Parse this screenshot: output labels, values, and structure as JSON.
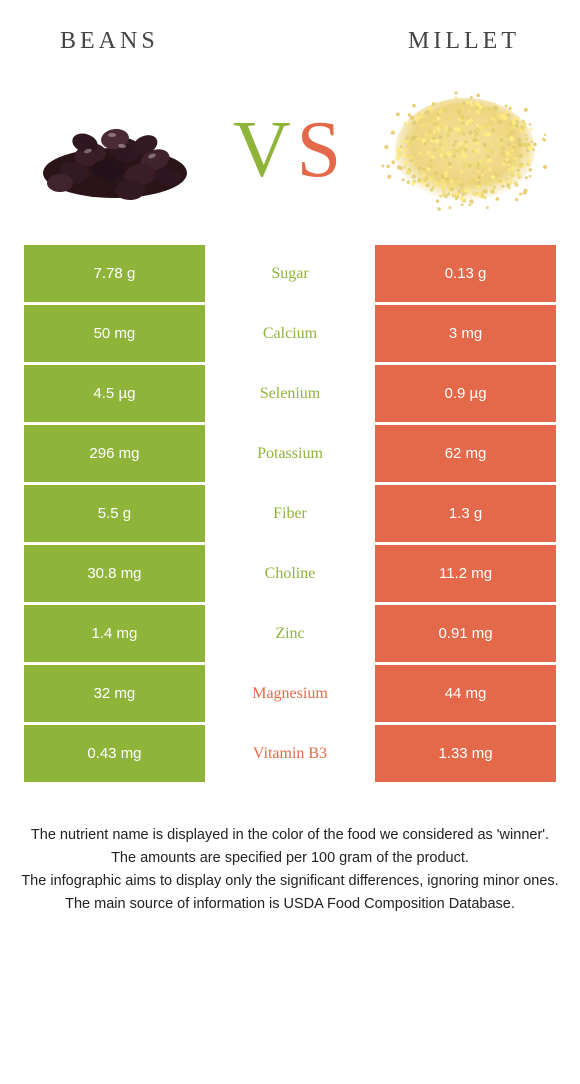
{
  "colors": {
    "beans": "#8fb43a",
    "millet": "#e4694a",
    "vs_v": "#8fb43a",
    "vs_s": "#e4694a",
    "bg": "#ffffff",
    "heading": "#444444",
    "footnote": "#222222"
  },
  "header": {
    "left": "Beans",
    "right": "Millet"
  },
  "vs": {
    "v": "V",
    "s": "S"
  },
  "rows": [
    {
      "left": "7.78 g",
      "label": "Sugar",
      "right": "0.13 g",
      "winner": "left"
    },
    {
      "left": "50 mg",
      "label": "Calcium",
      "right": "3 mg",
      "winner": "left"
    },
    {
      "left": "4.5 µg",
      "label": "Selenium",
      "right": "0.9 µg",
      "winner": "left"
    },
    {
      "left": "296 mg",
      "label": "Potassium",
      "right": "62 mg",
      "winner": "left"
    },
    {
      "left": "5.5 g",
      "label": "Fiber",
      "right": "1.3 g",
      "winner": "left"
    },
    {
      "left": "30.8 mg",
      "label": "Choline",
      "right": "11.2 mg",
      "winner": "left"
    },
    {
      "left": "1.4 mg",
      "label": "Zinc",
      "right": "0.91 mg",
      "winner": "left"
    },
    {
      "left": "32 mg",
      "label": "Magnesium",
      "right": "44 mg",
      "winner": "right"
    },
    {
      "left": "0.43 mg",
      "label": "Vitamin B3",
      "right": "1.33 mg",
      "winner": "right"
    }
  ],
  "footnotes": [
    "The nutrient name is displayed in the color of the food we considered as 'winner'.",
    "The amounts are specified per 100 gram of the product.",
    "The infographic aims to display only the significant differences, ignoring minor ones.",
    "The main source of information is USDA Food Composition Database."
  ]
}
